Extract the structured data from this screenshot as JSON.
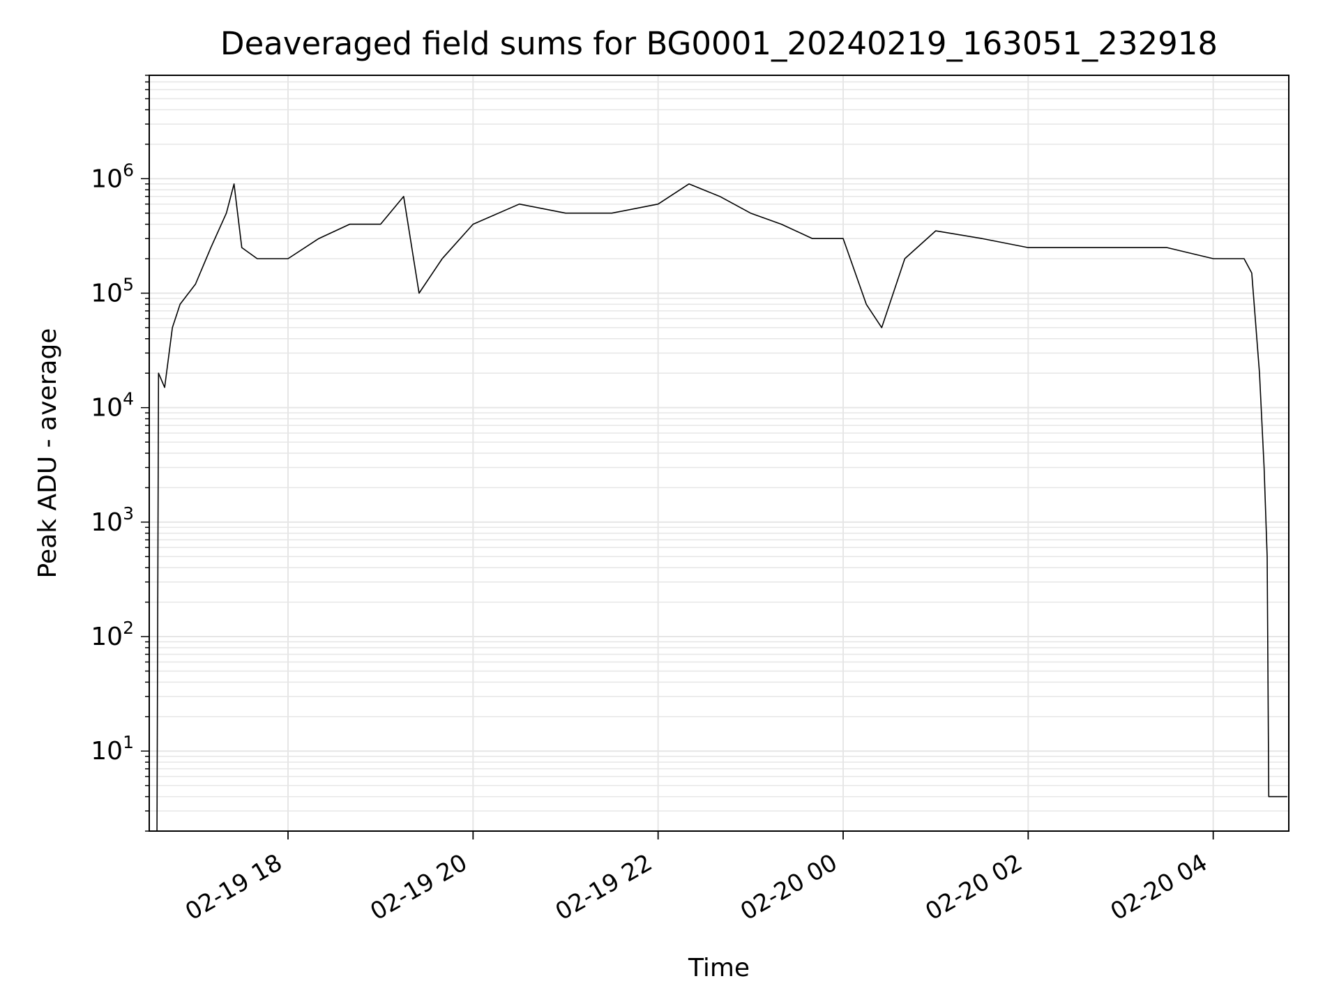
{
  "chart_data": {
    "type": "line",
    "title": "Deaveraged field sums for BG0001_20240219_163051_232918",
    "xlabel": "Time",
    "ylabel": "Peak ADU - average",
    "yscale": "log",
    "ylim": [
      2,
      8000000
    ],
    "xlim": [
      "2024-02-19 16:30",
      "2024-02-20 04:49"
    ],
    "grid": true,
    "x_tick_labels": [
      "02-19 18",
      "02-19 20",
      "02-19 22",
      "02-20 00",
      "02-20 02",
      "02-20 04"
    ],
    "x_ticks": [
      "2024-02-19 18:00",
      "2024-02-19 20:00",
      "2024-02-19 22:00",
      "2024-02-20 00:00",
      "2024-02-20 02:00",
      "2024-02-20 04:00"
    ],
    "y_tick_values": [
      10,
      100,
      1000,
      10000,
      100000,
      1000000
    ],
    "y_tick_labels": [
      {
        "base": "10",
        "exp": "1"
      },
      {
        "base": "10",
        "exp": "2"
      },
      {
        "base": "10",
        "exp": "3"
      },
      {
        "base": "10",
        "exp": "4"
      },
      {
        "base": "10",
        "exp": "5"
      },
      {
        "base": "10",
        "exp": "6"
      }
    ],
    "series_color": "#000000",
    "series": [
      {
        "x": [
          "2024-02-19 16:35",
          "2024-02-19 16:36",
          "2024-02-19 16:40",
          "2024-02-19 16:45",
          "2024-02-19 16:50",
          "2024-02-19 17:00",
          "2024-02-19 17:10",
          "2024-02-19 17:20",
          "2024-02-19 17:25",
          "2024-02-19 17:30",
          "2024-02-19 17:40",
          "2024-02-19 18:00",
          "2024-02-19 18:20",
          "2024-02-19 18:40",
          "2024-02-19 19:00",
          "2024-02-19 19:15",
          "2024-02-19 19:25",
          "2024-02-19 19:40",
          "2024-02-19 20:00",
          "2024-02-19 20:30",
          "2024-02-19 21:00",
          "2024-02-19 21:30",
          "2024-02-19 22:00",
          "2024-02-19 22:20",
          "2024-02-19 22:40",
          "2024-02-19 23:00",
          "2024-02-19 23:20",
          "2024-02-19 23:40",
          "2024-02-20 00:00",
          "2024-02-20 00:15",
          "2024-02-20 00:25",
          "2024-02-20 00:40",
          "2024-02-20 01:00",
          "2024-02-20 01:30",
          "2024-02-20 02:00",
          "2024-02-20 02:30",
          "2024-02-20 03:00",
          "2024-02-20 03:30",
          "2024-02-20 04:00",
          "2024-02-20 04:20",
          "2024-02-20 04:25",
          "2024-02-20 04:30",
          "2024-02-20 04:33",
          "2024-02-20 04:35",
          "2024-02-20 04:36",
          "2024-02-20 04:48"
        ],
        "y": [
          2,
          20000,
          15000,
          50000,
          80000,
          120000,
          250000,
          500000,
          900000,
          250000,
          200000,
          200000,
          300000,
          400000,
          400000,
          700000,
          100000,
          200000,
          400000,
          600000,
          500000,
          500000,
          600000,
          900000,
          700000,
          500000,
          400000,
          300000,
          300000,
          80000,
          50000,
          200000,
          350000,
          300000,
          250000,
          250000,
          250000,
          250000,
          200000,
          200000,
          150000,
          20000,
          3000,
          500,
          4,
          4
        ]
      }
    ]
  }
}
